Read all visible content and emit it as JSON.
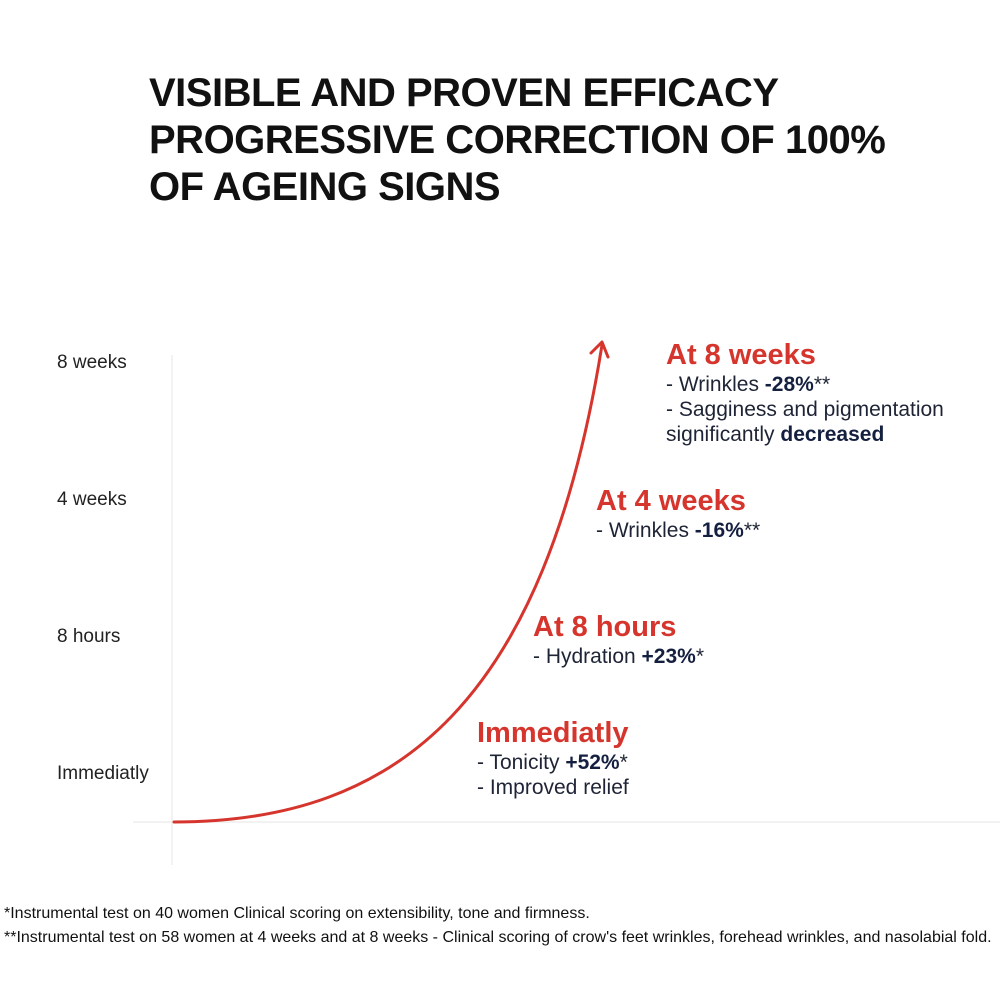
{
  "title_lines": [
    "VISIBLE AND PROVEN EFFICACY",
    "PROGRESSIVE CORRECTION OF 100%",
    "OF AGEING SIGNS"
  ],
  "chart_data": {
    "type": "line",
    "title": "VISIBLE AND PROVEN EFFICACY PROGRESSIVE CORRECTION OF 100% OF AGEING SIGNS",
    "y_categories": [
      "Immediatly",
      "8 hours",
      "4 weeks",
      "8 weeks"
    ],
    "curve": "exponential rising arrow",
    "grid": false,
    "accent_color": "#d6352d",
    "milestones": [
      {
        "heading": "Immediatly",
        "lines": [
          {
            "prefix": "- Tonicity ",
            "value": "+52%",
            "suffix": "*"
          },
          {
            "prefix": "- Improved relief",
            "value": "",
            "suffix": ""
          }
        ]
      },
      {
        "heading": "At 8 hours",
        "lines": [
          {
            "prefix": "- Hydration ",
            "value": "+23%",
            "suffix": "*"
          }
        ]
      },
      {
        "heading": "At 4 weeks",
        "lines": [
          {
            "prefix": "- Wrinkles ",
            "value": "-16%",
            "suffix": "**"
          }
        ]
      },
      {
        "heading": "At 8 weeks",
        "lines": [
          {
            "prefix": "- Wrinkles ",
            "value": "-28%",
            "suffix": "**"
          },
          {
            "prefix": "- Sagginess and pigmentation",
            "value": "",
            "suffix": ""
          },
          {
            "prefix": "significantly ",
            "value": "decreased",
            "suffix": ""
          }
        ]
      }
    ]
  },
  "footnotes": [
    "*Instrumental test on 40 women Clinical scoring on extensibility, tone and firmness.",
    "**Instrumental test on 58 women at 4 weeks and at 8 weeks - Clinical scoring of crow's feet wrinkles, forehead wrinkles, and nasolabial fold."
  ]
}
